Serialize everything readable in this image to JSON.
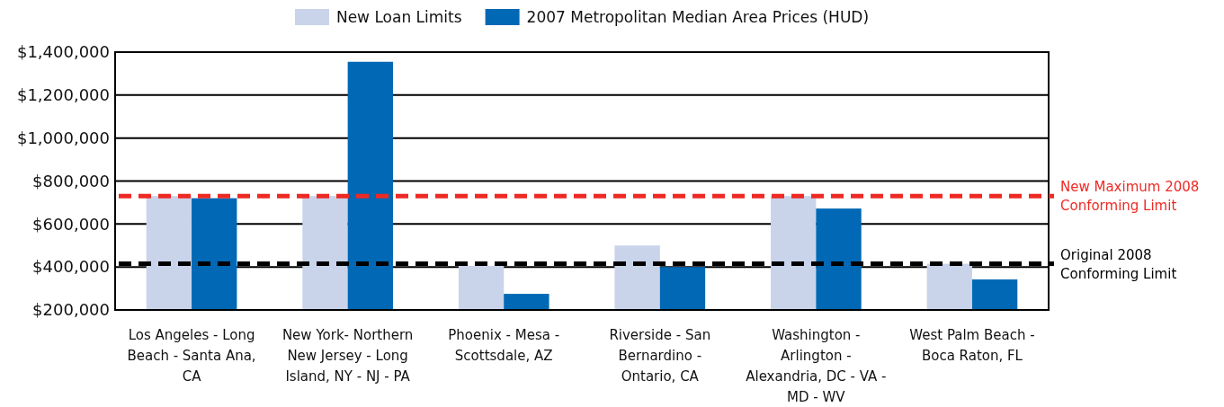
{
  "chart_data": {
    "type": "bar",
    "categories": [
      "Los Angeles - Long Beach - Santa Ana, CA",
      "New York- Northern New Jersey - Long Island, NY - NJ - PA",
      "Phoenix - Mesa - Scottsdale, AZ",
      "Riverside - San Bernardino - Ontario, CA",
      "Washington - Arlington - Alexandria, DC - VA - MD - WV",
      "West Palm Beach - Boca Raton, FL"
    ],
    "series": [
      {
        "name": "New Loan Limits",
        "color": "#c9d3ea",
        "values": [
          730000,
          730000,
          405000,
          500000,
          730000,
          415000
        ]
      },
      {
        "name": "2007 Metropolitan Median Area Prices (HUD)",
        "color": "#0068b4",
        "values": [
          720000,
          1355000,
          275000,
          400000,
          672000,
          342000
        ]
      }
    ],
    "ylim": [
      200000,
      1400000
    ],
    "yticks": [
      {
        "value": 200000,
        "label": "$200,000"
      },
      {
        "value": 400000,
        "label": "$400,000"
      },
      {
        "value": 600000,
        "label": "$600,000"
      },
      {
        "value": 800000,
        "label": "$800,000"
      },
      {
        "value": 1000000,
        "label": "$1,000,000"
      },
      {
        "value": 1200000,
        "label": "$1,200,000"
      },
      {
        "value": 1400000,
        "label": "$1,400,000"
      }
    ],
    "ref_lines": [
      {
        "axis": "y",
        "value": 730000,
        "label": "New Maximum 2008 Conforming Limit",
        "color": "#ee2a24",
        "line_style": "dashed"
      },
      {
        "axis": "y",
        "value": 415000,
        "label": "Original 2008 Conforming Limit",
        "color": "#000000",
        "line_style": "dashed"
      }
    ],
    "grid": "y",
    "legend": "top"
  }
}
